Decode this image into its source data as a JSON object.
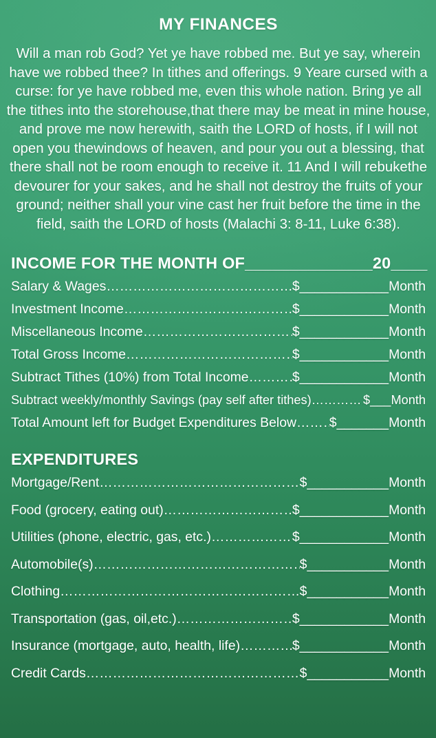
{
  "title": "MY FINANCES",
  "scripture": {
    "text": "Will a man rob God? Yet ye have robbed me. But ye say, wherein have we robbed thee? In tithes and offerings. 9  Yeare cursed with a curse: for ye have robbed me, even this whole nation. Bring ye all the tithes into the storehouse,that there may be meat in mine house, and prove me now herewith, saith the LORD of hosts, if I will not open you thewindows of heaven, and pour you out a blessing, that there shall not be room enough to receive it. 11  And I will rebukethe devourer for your sakes, and he shall not destroy the fruits of your ground; neither shall your vine cast her fruit before the time in the field, saith the LORD of hosts (Malachi 3: 8-11, Luke 6:38)."
  },
  "strings": {
    "currency": "$",
    "unit": "Month",
    "leader": "…………………………………………………………………………………………"
  },
  "income": {
    "heading": "INCOME FOR THE MONTH OF",
    "month_blank": "______________",
    "year_prefix": "20",
    "year_blank": "____",
    "rows": [
      {
        "label": "Salary & Wages",
        "blank": "____________"
      },
      {
        "label": "Investment Income",
        "blank": "____________"
      },
      {
        "label": "Miscellaneous Income",
        "blank": "____________"
      },
      {
        "label": "Total Gross Income",
        "blank": "____________"
      },
      {
        "label": "Subtract Tithes (10%) from Total Income",
        "blank": "____________"
      },
      {
        "label": "Subtract weekly/monthly Savings (pay self after tithes)",
        "blank": "___"
      },
      {
        "label": "Total Amount left for Budget Expenditures Below",
        "blank": "_______"
      }
    ]
  },
  "expenditures": {
    "heading": "EXPENDITURES",
    "rows": [
      {
        "label": "Mortgage/Rent",
        "blank": "___________"
      },
      {
        "label": "Food (grocery, eating out)",
        "blank": "____________"
      },
      {
        "label": "Utilities (phone, electric, gas, etc.)",
        "blank": "____________"
      },
      {
        "label": "Automobile(s)",
        "blank": "___________"
      },
      {
        "label": "Clothing",
        "blank": "___________"
      },
      {
        "label": "Transportation (gas, oil,etc.)",
        "blank": "____________"
      },
      {
        "label": "Insurance (mortgage, auto, health, life)",
        "blank": "____________"
      },
      {
        "label": "Credit Cards",
        "blank": "___________"
      }
    ]
  },
  "colors": {
    "background_top": "#3fa376",
    "background_bottom": "#246f45",
    "text": "#ffffff"
  }
}
